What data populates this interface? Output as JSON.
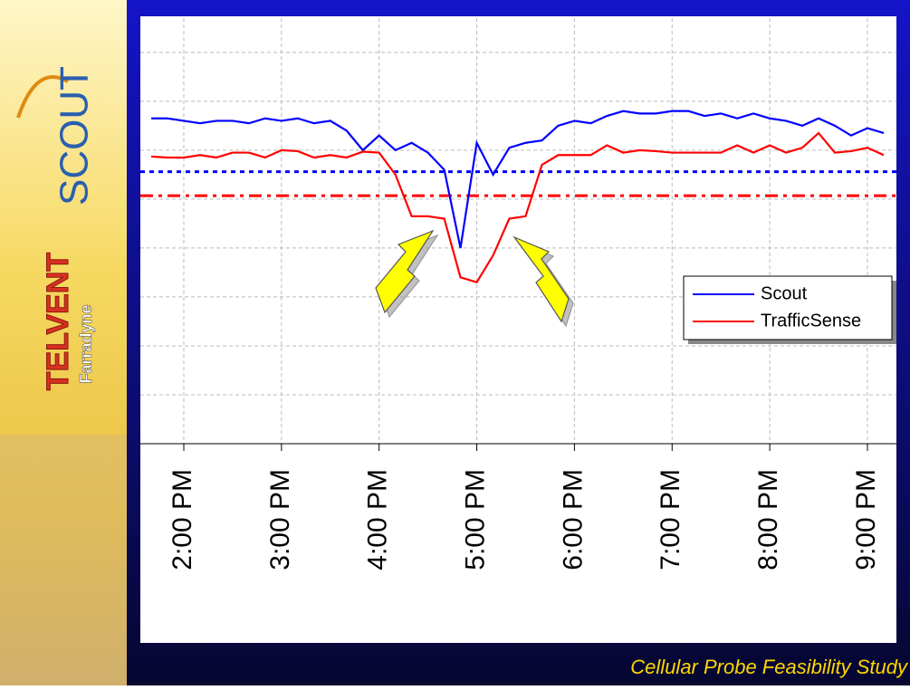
{
  "slide": {
    "logo": "SCOUT",
    "company": "TELVENT",
    "division": "Farradyne",
    "footer": "Cellular Probe Feasibility Study"
  },
  "chart_data": {
    "type": "line",
    "x": [
      13.667,
      13.833,
      14.0,
      14.167,
      14.333,
      14.5,
      14.667,
      14.833,
      15.0,
      15.167,
      15.333,
      15.5,
      15.667,
      15.833,
      16.0,
      16.167,
      16.333,
      16.5,
      16.667,
      16.833,
      17.0,
      17.167,
      17.333,
      17.5,
      17.667,
      17.833,
      18.0,
      18.167,
      18.333,
      18.5,
      18.667,
      18.833,
      19.0,
      19.167,
      19.333,
      19.5,
      19.667,
      19.833,
      20.0,
      20.167,
      20.333,
      20.5,
      20.667,
      20.833,
      21.0,
      21.167
    ],
    "series": [
      {
        "name": "Scout",
        "color": "#0000ff",
        "values": [
          6.65,
          6.65,
          6.6,
          6.55,
          6.6,
          6.6,
          6.55,
          6.65,
          6.6,
          6.65,
          6.55,
          6.6,
          6.4,
          6.0,
          6.3,
          6.0,
          6.15,
          5.95,
          5.6,
          4.0,
          6.15,
          5.5,
          6.05,
          6.15,
          6.2,
          6.5,
          6.6,
          6.55,
          6.7,
          6.8,
          6.75,
          6.75,
          6.8,
          6.8,
          6.7,
          6.75,
          6.65,
          6.75,
          6.65,
          6.6,
          6.5,
          6.65,
          6.5,
          6.3,
          6.45,
          6.35
        ]
      },
      {
        "name": "TrafficSense",
        "color": "#ff0000",
        "values": [
          5.87,
          5.85,
          5.85,
          5.9,
          5.85,
          5.95,
          5.95,
          5.85,
          6.0,
          5.98,
          5.85,
          5.9,
          5.85,
          5.97,
          5.95,
          5.5,
          4.65,
          4.65,
          4.6,
          3.4,
          3.3,
          3.85,
          4.6,
          4.65,
          5.7,
          5.9,
          5.9,
          5.9,
          6.1,
          5.95,
          6.0,
          5.98,
          5.95,
          5.95,
          5.95,
          5.95,
          6.1,
          5.95,
          6.1,
          5.95,
          6.05,
          6.35,
          5.95,
          5.98,
          6.05,
          5.9
        ]
      }
    ],
    "reference_lines": [
      {
        "value": 5.56,
        "color": "#0000ff",
        "style": "dotted"
      },
      {
        "value": 5.07,
        "color": "#ff0000",
        "style": "dashdot"
      }
    ],
    "xlim": [
      13.555,
      21.297
    ],
    "xticks": [
      {
        "value": 14,
        "label": "2:00 PM"
      },
      {
        "value": 15,
        "label": "3:00 PM"
      },
      {
        "value": 16,
        "label": "4:00 PM"
      },
      {
        "value": 17,
        "label": "5:00 PM"
      },
      {
        "value": 18,
        "label": "6:00 PM"
      },
      {
        "value": 19,
        "label": "7:00 PM"
      },
      {
        "value": 20,
        "label": "8:00 PM"
      },
      {
        "value": 21,
        "label": "9:00 PM"
      }
    ],
    "ylim": [
      0,
      8.7
    ],
    "yticks": [
      1,
      2,
      3,
      4,
      5,
      6,
      7,
      8
    ],
    "grid": true,
    "legend_position": "center-right"
  }
}
